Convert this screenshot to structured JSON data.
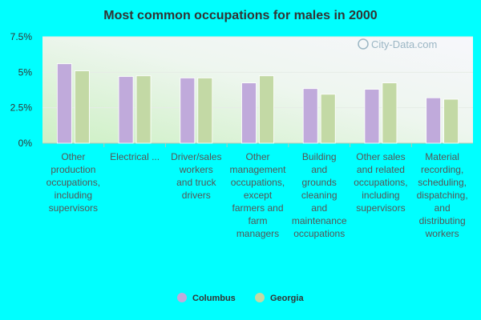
{
  "chart_data": {
    "type": "bar",
    "title": "Most common occupations for males in 2000",
    "xlabel": "",
    "ylabel": "",
    "ylim": [
      0,
      7.5
    ],
    "yticks": [
      "0%",
      "2.5%",
      "5%",
      "7.5%"
    ],
    "ytick_values": [
      0,
      2.5,
      5,
      7.5
    ],
    "categories": [
      [
        "Other",
        "production",
        "occupations,",
        "including",
        "supervisors"
      ],
      [
        "Electrical ..."
      ],
      [
        "Driver/sales",
        "workers",
        "and truck",
        "drivers"
      ],
      [
        "Other",
        "management",
        "occupations,",
        "except",
        "farmers and",
        "farm",
        "managers"
      ],
      [
        "Building",
        "and",
        "grounds",
        "cleaning",
        "and",
        "maintenance",
        "occupations"
      ],
      [
        "Other sales",
        "and related",
        "occupations,",
        "including",
        "supervisors"
      ],
      [
        "Material",
        "recording,",
        "scheduling,",
        "dispatching,",
        "and",
        "distributing",
        "workers"
      ]
    ],
    "series": [
      {
        "name": "Columbus",
        "color": "#c0aadb",
        "values": [
          5.6,
          4.7,
          4.6,
          4.25,
          3.85,
          3.8,
          3.2
        ]
      },
      {
        "name": "Georgia",
        "color": "#c3d9a5",
        "values": [
          5.1,
          4.75,
          4.6,
          4.75,
          3.45,
          4.25,
          3.1
        ]
      }
    ],
    "grid": true,
    "legend_position": "bottom"
  },
  "watermark": "City-Data.com"
}
